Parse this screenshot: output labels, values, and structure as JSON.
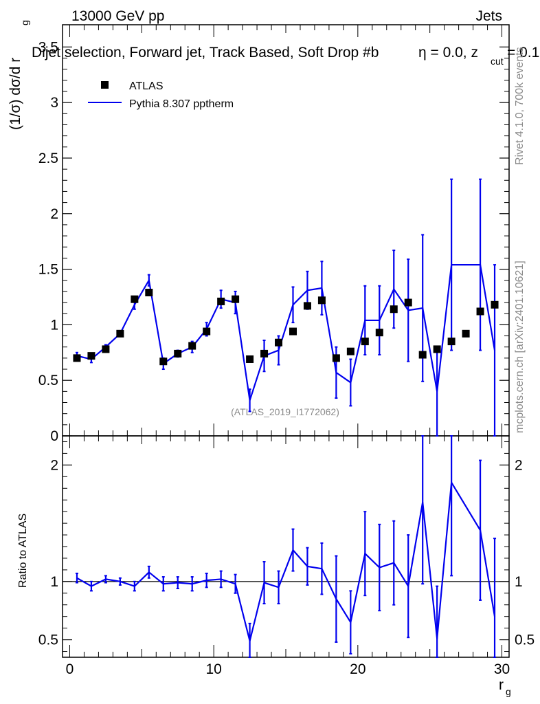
{
  "header": {
    "energy": "13000 GeV pp",
    "process": "Jets",
    "title": "Dijet selection, Forward jet, Track Based, Soft Drop #b",
    "eta_part": "η = 0.0, z",
    "eta_sub": "cut",
    "eta_tail": " = 0.1",
    "side_label_top": "Rivet 4.1.0,  700k events",
    "side_label_bottom": "mcplots.cern.ch [arXiv:2401.10621]",
    "watermark": "(ATLAS_2019_I1772062)"
  },
  "colors": {
    "mc": "#0000ee",
    "data": "#000000",
    "watermark": "#8a8a8a"
  },
  "chart_data": [
    {
      "type": "scatter",
      "panel": "main",
      "ylabel": "(1/σ) dσ/d r",
      "ylabel_sub": "g",
      "xlim": [
        -0.5,
        30.5
      ],
      "ylim": [
        0,
        3.7
      ],
      "yticks": [
        0,
        0.5,
        1,
        1.5,
        2,
        2.5,
        3,
        3.5
      ],
      "ytick_labels": [
        "0",
        "0.5",
        "1",
        "1.5",
        "2",
        "2.5",
        "3",
        "3.5"
      ],
      "legend": [
        {
          "name": "ATLAS",
          "marker": "square"
        },
        {
          "name": "Pythia 8.307 pptherm",
          "marker": "line"
        }
      ],
      "series": [
        {
          "name": "ATLAS",
          "x": [
            0.5,
            1.5,
            2.5,
            3.5,
            4.5,
            5.5,
            6.5,
            7.5,
            8.5,
            9.5,
            10.5,
            11.5,
            12.5,
            13.5,
            14.5,
            15.5,
            16.5,
            17.5,
            18.5,
            19.5,
            20.5,
            21.5,
            22.5,
            23.5,
            24.5,
            25.5,
            26.5,
            27.5,
            28.5,
            29.5
          ],
          "y": [
            0.7,
            0.72,
            0.78,
            0.92,
            1.23,
            1.29,
            0.67,
            0.74,
            0.81,
            0.94,
            1.21,
            1.23,
            0.69,
            0.74,
            0.84,
            0.94,
            1.17,
            1.22,
            0.7,
            0.76,
            0.85,
            0.93,
            1.14,
            1.2,
            0.73,
            0.78,
            0.85,
            0.92,
            1.12,
            1.18
          ]
        },
        {
          "name": "Pythia 8.307 pptherm",
          "x": [
            0.5,
            1.5,
            2.5,
            3.5,
            4.5,
            5.5,
            6.5,
            7.5,
            8.5,
            9.5,
            10.5,
            11.5,
            12.5,
            13.5,
            14.5,
            15.5,
            16.5,
            17.5,
            18.5,
            19.5,
            20.5,
            21.5,
            22.5,
            23.5,
            24.5,
            25.5,
            26.5,
            27.5,
            28.5,
            29.5
          ],
          "y": [
            0.72,
            0.69,
            0.8,
            0.92,
            1.18,
            1.4,
            0.65,
            0.74,
            0.8,
            0.96,
            1.23,
            1.2,
            0.32,
            0.72,
            0.77,
            1.18,
            1.31,
            1.33,
            0.57,
            0.48,
            1.04,
            1.04,
            1.32,
            1.13,
            1.15,
            0.4,
            1.54,
            1.54,
            1.54,
            0.77
          ],
          "yerr": [
            0.03,
            0.03,
            0.02,
            0.02,
            0.04,
            0.05,
            0.05,
            0.03,
            0.05,
            0.06,
            0.08,
            0.1,
            0.1,
            0.14,
            0.13,
            0.16,
            0.17,
            0.24,
            0.23,
            0.21,
            0.31,
            0.31,
            0.35,
            0.46,
            0.66,
            0.4,
            0.77,
            0.0,
            0.77,
            0.77
          ]
        }
      ]
    },
    {
      "type": "line",
      "panel": "ratio",
      "ylabel": "Ratio to ATLAS",
      "xlabel": "r",
      "xlabel_sub": "g",
      "xlim": [
        -0.5,
        30.5
      ],
      "ylim": [
        0.35,
        2.25
      ],
      "yticks": [
        0.5,
        1,
        2
      ],
      "ytick_labels": [
        "0.5",
        "1",
        "2"
      ],
      "xticks": [
        0,
        10,
        20,
        30
      ],
      "xtick_labels": [
        "0",
        "10",
        "20",
        "30"
      ],
      "reference": 1,
      "series": [
        {
          "name": "Pythia 8.307 pptherm / ATLAS",
          "x": [
            0.5,
            1.5,
            2.5,
            3.5,
            4.5,
            5.5,
            6.5,
            7.5,
            8.5,
            9.5,
            10.5,
            11.5,
            12.5,
            13.5,
            14.5,
            15.5,
            16.5,
            17.5,
            18.5,
            19.5,
            20.5,
            21.5,
            22.5,
            23.5,
            24.5,
            25.5,
            26.5,
            28.5,
            29.5
          ],
          "y": [
            1.03,
            0.96,
            1.02,
            1.0,
            0.96,
            1.08,
            0.98,
            0.99,
            0.98,
            1.01,
            1.02,
            0.98,
            0.49,
            0.99,
            0.95,
            1.27,
            1.13,
            1.11,
            0.85,
            0.65,
            1.24,
            1.12,
            1.16,
            0.96,
            1.68,
            0.51,
            1.85,
            1.44,
            0.7
          ],
          "yerr": [
            0.04,
            0.04,
            0.03,
            0.03,
            0.04,
            0.05,
            0.06,
            0.05,
            0.06,
            0.06,
            0.07,
            0.08,
            0.15,
            0.18,
            0.14,
            0.18,
            0.16,
            0.22,
            0.37,
            0.27,
            0.36,
            0.37,
            0.36,
            0.44,
            0.7,
            0.45,
            0.8,
            0.6,
            0.67
          ]
        }
      ]
    }
  ]
}
